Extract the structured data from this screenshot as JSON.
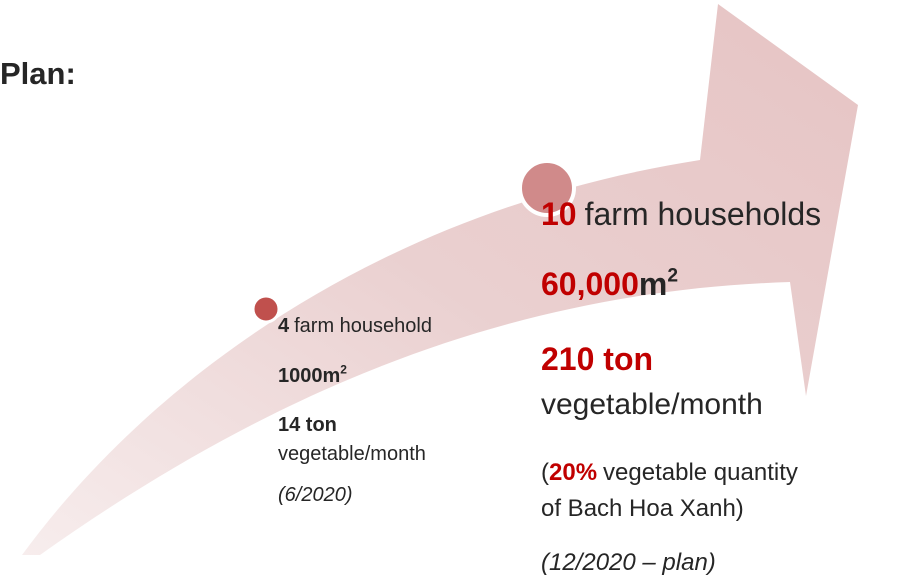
{
  "heading": "Plan:",
  "stage1": {
    "households": "4",
    "households_text": "farm household",
    "area": "1000m",
    "area_sup": "2",
    "output": "14 ton",
    "output_text": "vegetable/month",
    "date": "(6/2020)"
  },
  "stage2": {
    "households": "10",
    "households_text": "farm households",
    "area": "60,000",
    "area_unit": "m",
    "area_sup": "2",
    "output": "210 ton",
    "output_text": "vegetable/month",
    "share_open": "(",
    "share": "20%",
    "share_text": "vegetable quantity",
    "share_text2": "of Bach Hoa Xanh)",
    "date": "(12/2020 – plan)"
  }
}
